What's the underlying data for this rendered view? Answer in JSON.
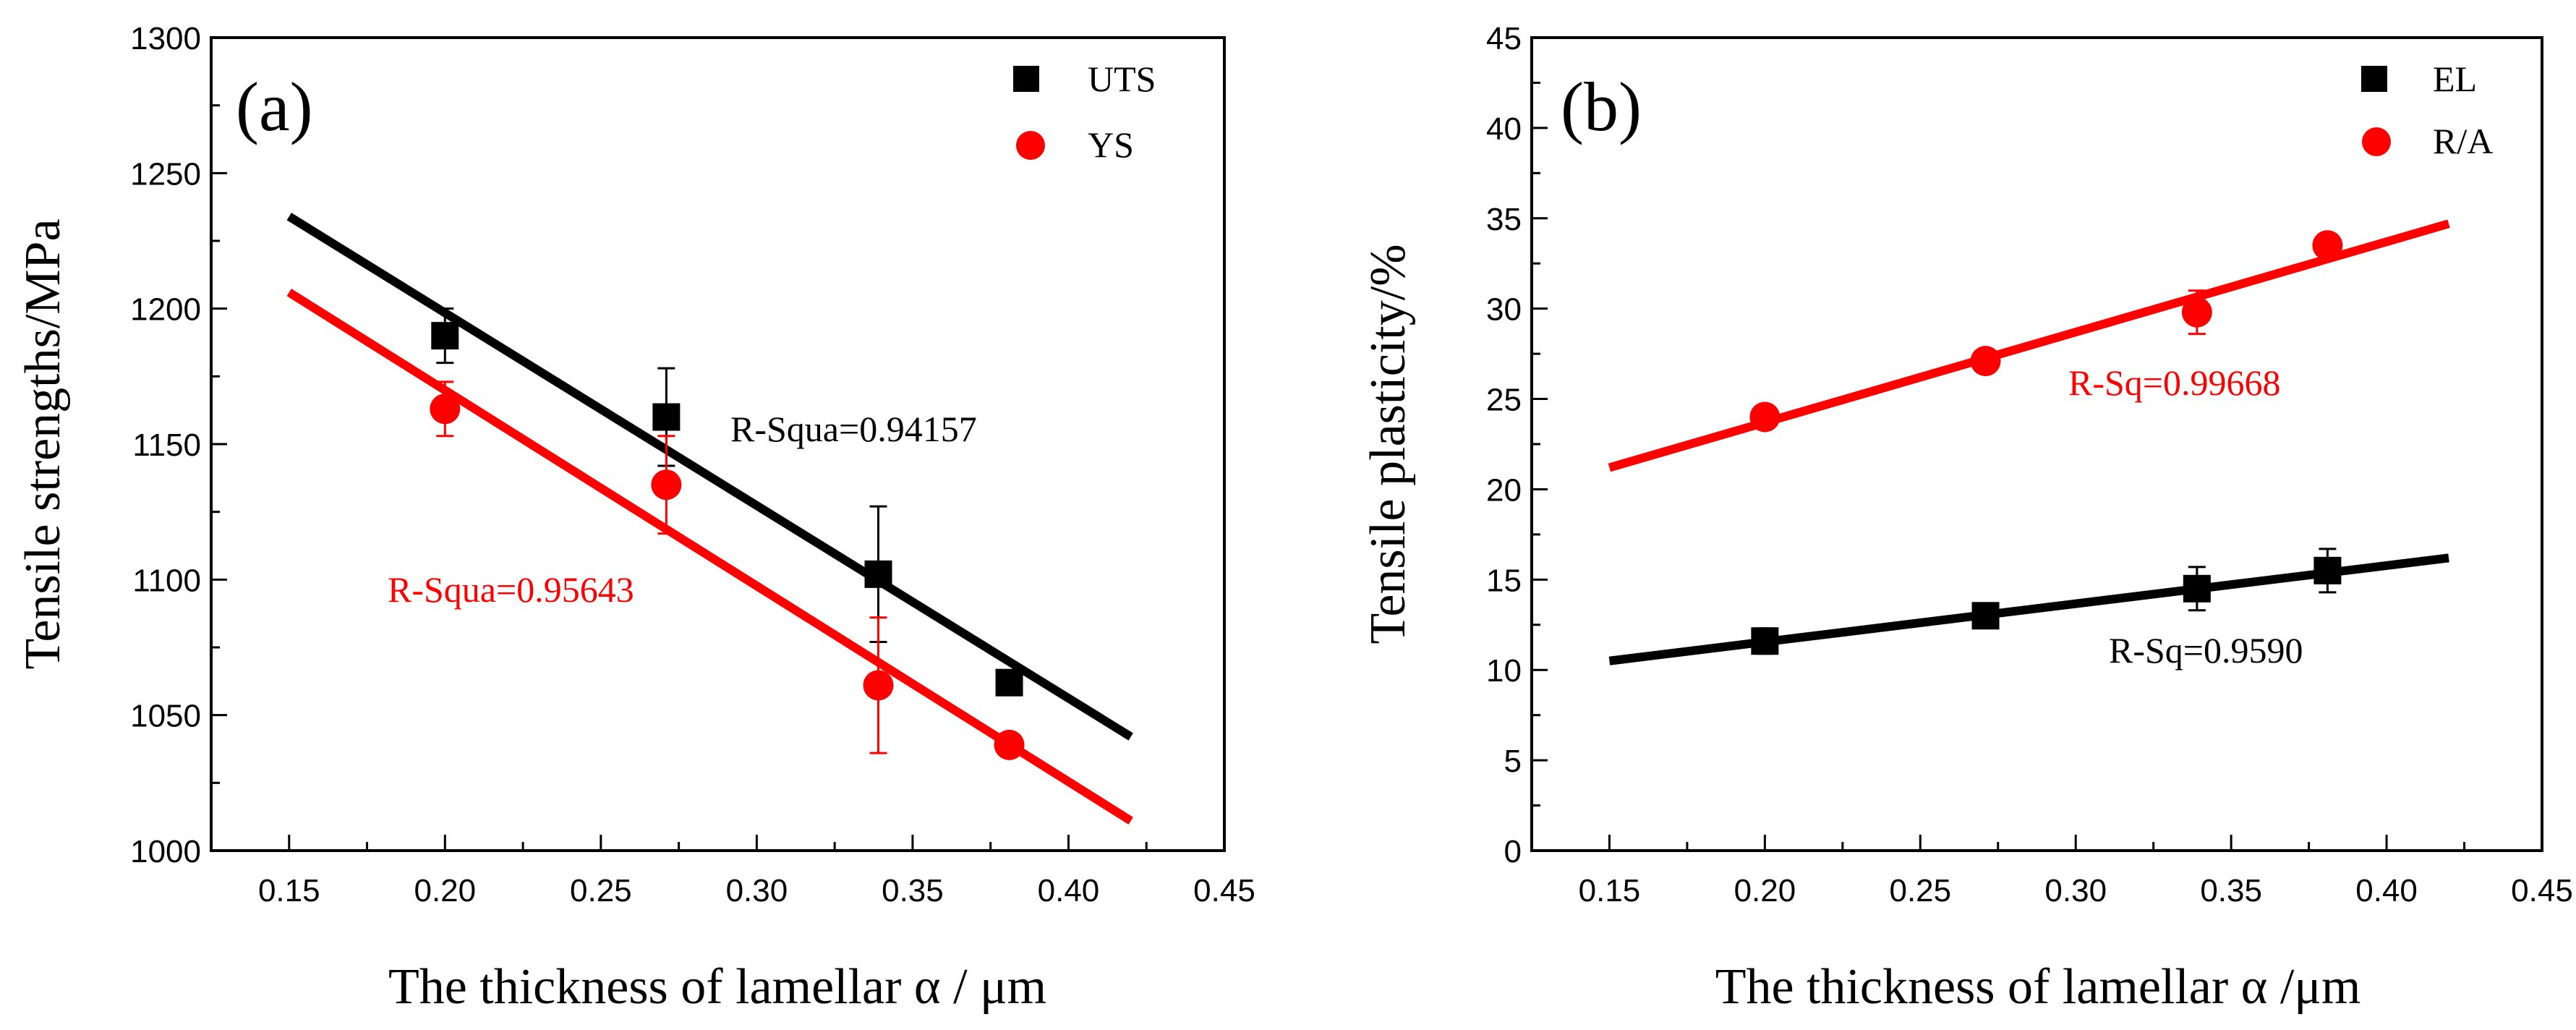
{
  "chart_data": [
    {
      "type": "scatter",
      "panel_label": "(a)",
      "xlabel": "The thickness of lamellar α / μm",
      "ylabel": "Tensile strengths/MPa",
      "xlim": [
        0.125,
        0.45
      ],
      "ylim": [
        1000,
        1300
      ],
      "xticks": [
        "0.15",
        "0.20",
        "0.25",
        "0.30",
        "0.35",
        "0.40",
        "0.45"
      ],
      "yticks": [
        "1000",
        "1050",
        "1100",
        "1150",
        "1200",
        "1250",
        "1300"
      ],
      "legend_position": "top-right",
      "series": [
        {
          "name": "UTS",
          "color": "#000000",
          "marker": "square",
          "x": [
            0.2,
            0.271,
            0.339,
            0.381
          ],
          "y": [
            1190,
            1160,
            1102,
            1062
          ],
          "err": [
            10,
            18,
            25,
            4
          ],
          "fit": {
            "x": [
              0.15,
              0.42
            ],
            "y": [
              1234,
              1042
            ]
          },
          "r_squared_label": "R-Squa=0.94157"
        },
        {
          "name": "YS",
          "color": "#ff0000",
          "marker": "circle",
          "x": [
            0.2,
            0.271,
            0.339,
            0.381
          ],
          "y": [
            1163,
            1135,
            1061,
            1039
          ],
          "err": [
            10,
            18,
            25,
            2
          ],
          "fit": {
            "x": [
              0.15,
              0.42
            ],
            "y": [
              1206,
              1011
            ]
          },
          "r_squared_label": "R-Squa=0.95643"
        }
      ]
    },
    {
      "type": "scatter",
      "panel_label": "(b)",
      "xlabel": "The thickness of lamellar α  /μm",
      "ylabel": "Tensile plasticity/%",
      "xlim": [
        0.125,
        0.45
      ],
      "ylim": [
        0,
        45
      ],
      "xticks": [
        "0.15",
        "0.20",
        "0.25",
        "0.30",
        "0.35",
        "0.40",
        "0.45"
      ],
      "yticks": [
        "0",
        "5",
        "10",
        "15",
        "20",
        "25",
        "30",
        "35",
        "40",
        "45"
      ],
      "legend_position": "top-right",
      "series": [
        {
          "name": "EL",
          "color": "#000000",
          "marker": "square",
          "x": [
            0.2,
            0.271,
            0.339,
            0.381
          ],
          "y": [
            11.6,
            13.0,
            14.5,
            15.5
          ],
          "err": [
            0.7,
            0.4,
            1.2,
            1.2
          ],
          "fit": {
            "x": [
              0.15,
              0.42
            ],
            "y": [
              10.5,
              16.2
            ]
          },
          "r_squared_label": "R-Sq=0.9590"
        },
        {
          "name": "R/A",
          "color": "#ff0000",
          "marker": "circle",
          "x": [
            0.2,
            0.271,
            0.339,
            0.381
          ],
          "y": [
            24.0,
            27.1,
            29.8,
            33.5
          ],
          "err": [
            0.4,
            0.4,
            1.2,
            0.5
          ],
          "fit": {
            "x": [
              0.15,
              0.42
            ],
            "y": [
              21.2,
              34.7
            ]
          },
          "r_squared_label": "R-Sq=0.99668"
        }
      ]
    }
  ]
}
